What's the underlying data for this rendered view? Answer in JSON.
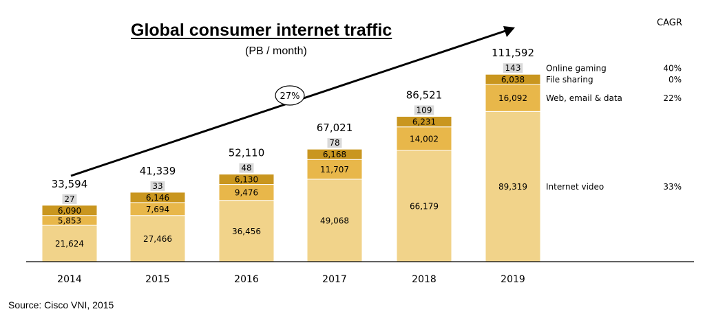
{
  "title": "Global consumer internet traffic",
  "subtitle": "(PB / month)",
  "source": "Source: Cisco VNI, 2015",
  "cagr_header": "CAGR",
  "overall_cagr": "27%",
  "colors": {
    "Internet video": "#f1d38a",
    "Web, email & data": "#e8b74a",
    "File sharing": "#c9961f",
    "Online gaming": "#d9d9d9"
  },
  "chart_data": {
    "type": "bar",
    "stacked": true,
    "categories": [
      "2014",
      "2015",
      "2016",
      "2017",
      "2018",
      "2019"
    ],
    "series": [
      {
        "name": "Internet video",
        "values": [
          21624,
          27466,
          36456,
          49068,
          66179,
          89319
        ],
        "cagr": "33%"
      },
      {
        "name": "Web, email & data",
        "values": [
          5853,
          7694,
          9476,
          11707,
          14002,
          16092
        ],
        "cagr": "22%"
      },
      {
        "name": "File sharing",
        "values": [
          6090,
          6146,
          6130,
          6168,
          6231,
          6038
        ],
        "cagr": "0%"
      },
      {
        "name": "Online gaming",
        "values": [
          27,
          33,
          48,
          78,
          109,
          143
        ],
        "cagr": "40%"
      }
    ],
    "totals": [
      "33,594",
      "41,339",
      "52,110",
      "67,021",
      "86,521",
      "111,592"
    ],
    "labels": [
      [
        "21,624",
        "27,466",
        "36,456",
        "49,068",
        "66,179",
        "89,319"
      ],
      [
        "5,853",
        "7,694",
        "9,476",
        "11,707",
        "14,002",
        "16,092"
      ],
      [
        "6,090",
        "6,146",
        "6,130",
        "6,168",
        "6,231",
        "6,038"
      ],
      [
        "27",
        "33",
        "48",
        "78",
        "109",
        "143"
      ]
    ],
    "legend_placement": "right"
  }
}
